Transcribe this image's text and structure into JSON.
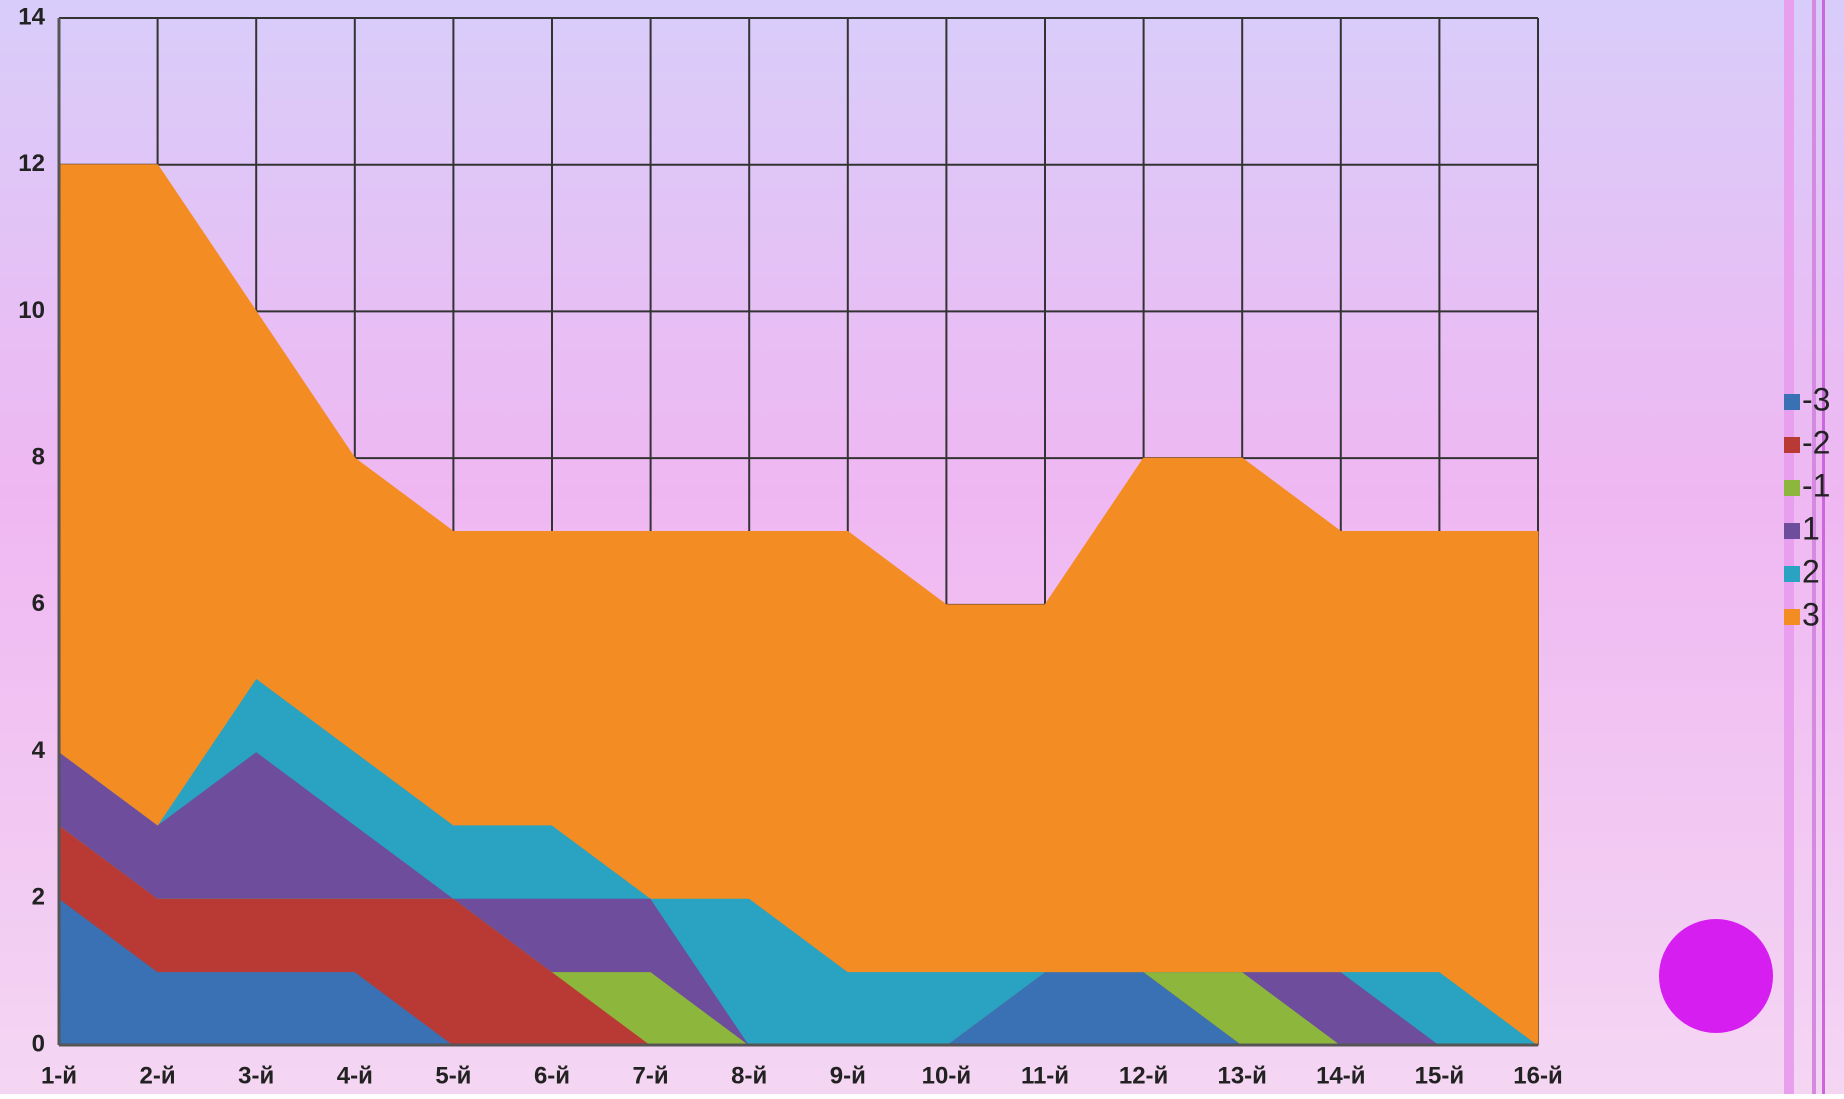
{
  "chart_data": {
    "type": "stacked_area",
    "categories": [
      "1-й",
      "2-й",
      "3-й",
      "4-й",
      "5-й",
      "6-й",
      "7-й",
      "8-й",
      "9-й",
      "10-й",
      "11-й",
      "12-й",
      "13-й",
      "14-й",
      "15-й",
      "16-й"
    ],
    "series": [
      {
        "name": "-3",
        "color": "#3a70b4",
        "values": [
          2,
          1,
          1,
          1,
          0,
          0,
          0,
          0,
          0,
          0,
          1,
          1,
          0,
          0,
          0,
          0
        ]
      },
      {
        "name": "-2",
        "color": "#b93a35",
        "values": [
          1,
          1,
          1,
          1,
          2,
          1,
          0,
          0,
          0,
          0,
          0,
          0,
          0,
          0,
          0,
          0
        ]
      },
      {
        "name": "-1",
        "color": "#8db63c",
        "values": [
          0,
          0,
          0,
          0,
          0,
          0,
          1,
          0,
          0,
          0,
          0,
          0,
          1,
          0,
          0,
          0
        ]
      },
      {
        "name": "1",
        "color": "#6d4d9c",
        "values": [
          1,
          1,
          2,
          1,
          0,
          1,
          1,
          0,
          0,
          0,
          0,
          0,
          0,
          1,
          0,
          0
        ]
      },
      {
        "name": "2",
        "color": "#2aa2c2",
        "values": [
          0,
          0,
          1,
          1,
          1,
          1,
          0,
          2,
          1,
          1,
          0,
          0,
          0,
          0,
          1,
          0
        ]
      },
      {
        "name": "3",
        "color": "#f38c22",
        "values": [
          8,
          9,
          5,
          4,
          4,
          4,
          5,
          5,
          6,
          5,
          5,
          7,
          7,
          6,
          6,
          7
        ]
      }
    ],
    "ylim": [
      0,
      14
    ],
    "yticks": [
      0,
      2,
      4,
      6,
      8,
      10,
      12,
      14
    ],
    "grid": true,
    "legend": "right"
  }
}
